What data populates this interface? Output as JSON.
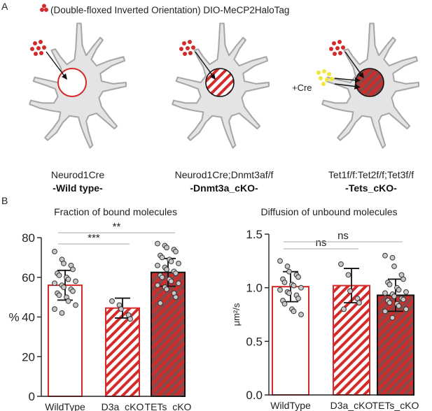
{
  "panel_a": {
    "label": "A",
    "legend_text": "(Double-floxed Inverted Orientation) DIO-MeCP2HaloTag",
    "cre_label": "+Cre",
    "neurons": [
      {
        "line1": "Neurod1Cre",
        "line2": "-Wild type-",
        "nucleus": "open"
      },
      {
        "line1": "Neurod1Cre;Dnmt3af/f",
        "line2": "-Dnmt3a_cKO-",
        "nucleus": "hatched"
      },
      {
        "line1": "Tet1f/f:Tet2f/f;Tet3f/f",
        "line2": "-Tets_cKO-",
        "nucleus": "hatched-filled"
      }
    ]
  },
  "panel_b": {
    "label": "B",
    "colors": {
      "red": "#d42a2a",
      "dark_fill": "#8c4848",
      "gray_line": "#aaaaaa",
      "point_fill": "#c8c8c8"
    }
  },
  "chart_data": [
    {
      "type": "bar",
      "title": "Fraction of bound molecules",
      "ylabel": "%",
      "xlabel": "",
      "ylim": [
        0,
        80
      ],
      "yticks": [
        0,
        20,
        40,
        60,
        80
      ],
      "categories": [
        "WildType",
        "D3a_cKO",
        "TETs_cKO"
      ],
      "values": [
        56,
        44.5,
        62.5
      ],
      "sd": [
        7.5,
        5,
        7
      ],
      "significance": [
        {
          "pair": [
            0,
            1
          ],
          "label": "***"
        },
        {
          "pair": [
            0,
            2
          ],
          "label": "**"
        }
      ],
      "points": [
        [
          73,
          69,
          67,
          66,
          64,
          62,
          61,
          60,
          59,
          58,
          57,
          56,
          55,
          54,
          53,
          52,
          51,
          50,
          48,
          46,
          44,
          42
        ],
        [
          48,
          46,
          44,
          41,
          39
        ],
        [
          77,
          76,
          75,
          74,
          73,
          71,
          70,
          69,
          68,
          67,
          66,
          65,
          64,
          63,
          62,
          61,
          60,
          59,
          58,
          57,
          56,
          55,
          54,
          52,
          50,
          47
        ]
      ]
    },
    {
      "type": "bar",
      "title": "Diffusion of unbound molecules",
      "ylabel": "μm²/s",
      "xlabel": "",
      "ylim": [
        0,
        1.5
      ],
      "yticks": [
        "0.0",
        "0.5",
        "1.0",
        "1.5"
      ],
      "categories": [
        "WildType",
        "D3a_cKO",
        "TETs_cKO"
      ],
      "values": [
        1.01,
        1.02,
        0.93
      ],
      "sd": [
        0.14,
        0.16,
        0.15
      ],
      "significance": [
        {
          "pair": [
            0,
            1
          ],
          "label": "ns"
        },
        {
          "pair": [
            0,
            2
          ],
          "label": "ns"
        }
      ],
      "points": [
        [
          1.25,
          1.2,
          1.15,
          1.12,
          1.1,
          1.08,
          1.05,
          1.03,
          1.02,
          1.0,
          0.98,
          0.96,
          0.95,
          0.93,
          0.9,
          0.88,
          0.85,
          0.8,
          0.78,
          0.75
        ],
        [
          1.22,
          1.12,
          0.97,
          0.9,
          0.86,
          0.8
        ],
        [
          1.3,
          1.28,
          1.2,
          1.12,
          1.08,
          1.05,
          1.03,
          1.0,
          0.98,
          0.96,
          0.95,
          0.94,
          0.92,
          0.9,
          0.89,
          0.88,
          0.86,
          0.85,
          0.83,
          0.8,
          0.78,
          0.72
        ]
      ]
    }
  ]
}
